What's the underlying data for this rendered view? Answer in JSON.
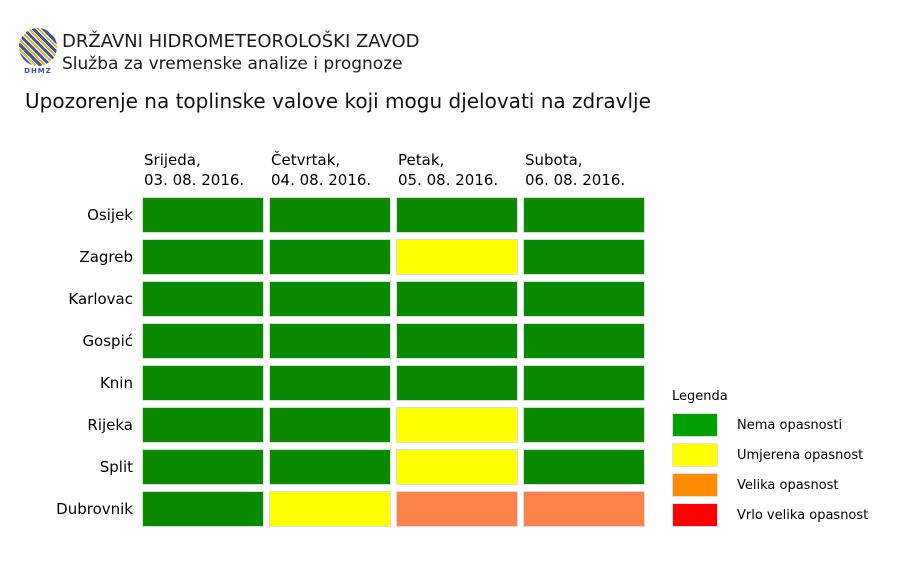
{
  "header": {
    "org": "DRŽAVNI HIDROMETEOROLOŠKI ZAVOD",
    "dept": "Služba za vremenske analize i prognoze",
    "logo_text": "DHMZ",
    "logo_colors": {
      "blue": "#3653a4",
      "yellow": "#e9b417"
    }
  },
  "title": "Upozorenje na toplinske valove koji mogu djelovati na zdravlje",
  "chart_data": {
    "type": "heatmap",
    "columns": [
      {
        "day": "Srijeda,",
        "date": "03. 08. 2016."
      },
      {
        "day": "Četvrtak,",
        "date": "04. 08. 2016."
      },
      {
        "day": "Petak,",
        "date": "05. 08. 2016."
      },
      {
        "day": "Subota,",
        "date": "06. 08. 2016."
      }
    ],
    "rows": [
      {
        "city": "Osijek",
        "levels": [
          0,
          0,
          0,
          0
        ]
      },
      {
        "city": "Zagreb",
        "levels": [
          0,
          0,
          1,
          0
        ]
      },
      {
        "city": "Karlovac",
        "levels": [
          0,
          0,
          0,
          0
        ]
      },
      {
        "city": "Gospić",
        "levels": [
          0,
          0,
          0,
          0
        ]
      },
      {
        "city": "Knin",
        "levels": [
          0,
          0,
          0,
          0
        ]
      },
      {
        "city": "Rijeka",
        "levels": [
          0,
          0,
          1,
          0
        ]
      },
      {
        "city": "Split",
        "levels": [
          0,
          0,
          1,
          0
        ]
      },
      {
        "city": "Dubrovnik",
        "levels": [
          0,
          1,
          2,
          2
        ]
      }
    ],
    "level_names": [
      "Nema opasnosti",
      "Umjerena opasnost",
      "Velika opasnost",
      "Vrlo velika opasnost"
    ],
    "cell_colors": [
      "#0a8a00",
      "#ffff00",
      "#fb8249",
      "#ff0000"
    ]
  },
  "legend": {
    "title": "Legenda",
    "items": [
      {
        "label": "Nema opasnosti",
        "color": "#00a000"
      },
      {
        "label": "Umjerena opasnost",
        "color": "#ffff00"
      },
      {
        "label": "Velika opasnost",
        "color": "#ff8c00"
      },
      {
        "label": "Vrlo velika opasnost",
        "color": "#ff0000"
      }
    ]
  }
}
